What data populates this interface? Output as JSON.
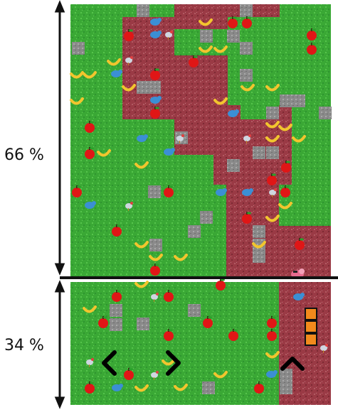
{
  "overlay": {
    "top_percent_label": "66 %",
    "bottom_percent_label": "34 %",
    "top_fraction": 0.66,
    "bottom_fraction": 0.34
  },
  "game": {
    "colors": {
      "grass": "#3aa835",
      "grass_light": "#53c24a",
      "dirt": "#9a3a45",
      "dirt_dark": "#7d2a33",
      "rock": "#8a8a8a",
      "apple": "#e01616",
      "banana": "#f2c52e",
      "bird": "#3b8fd4",
      "player": "#e76b8f",
      "orange_button": "#f28a1c",
      "divider": "#111111"
    },
    "controls": {
      "left_arrow_icon": "chevron-left-icon",
      "right_arrow_icon": "chevron-right-icon",
      "up_arrow_icon": "chevron-up-icon",
      "menu_icon": "stacked-squares-icon"
    }
  }
}
